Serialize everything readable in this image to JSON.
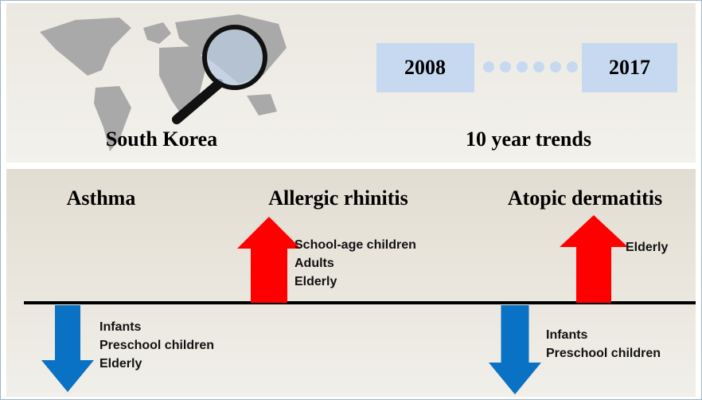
{
  "header": {
    "location": "South Korea",
    "period": {
      "start": "2008",
      "end": "2017"
    },
    "caption": "10 year trends"
  },
  "diseases": [
    {
      "name": "Asthma",
      "decreased": [
        "Infants",
        "Preschool children",
        "Elderly"
      ]
    },
    {
      "name": "Allergic rhinitis",
      "increased": [
        "School-age children",
        "Adults",
        "Elderly"
      ]
    },
    {
      "name": "Atopic dermatitis",
      "increased": [
        "Elderly"
      ],
      "decreased": [
        "Infants",
        "Preschool children"
      ]
    }
  ]
}
